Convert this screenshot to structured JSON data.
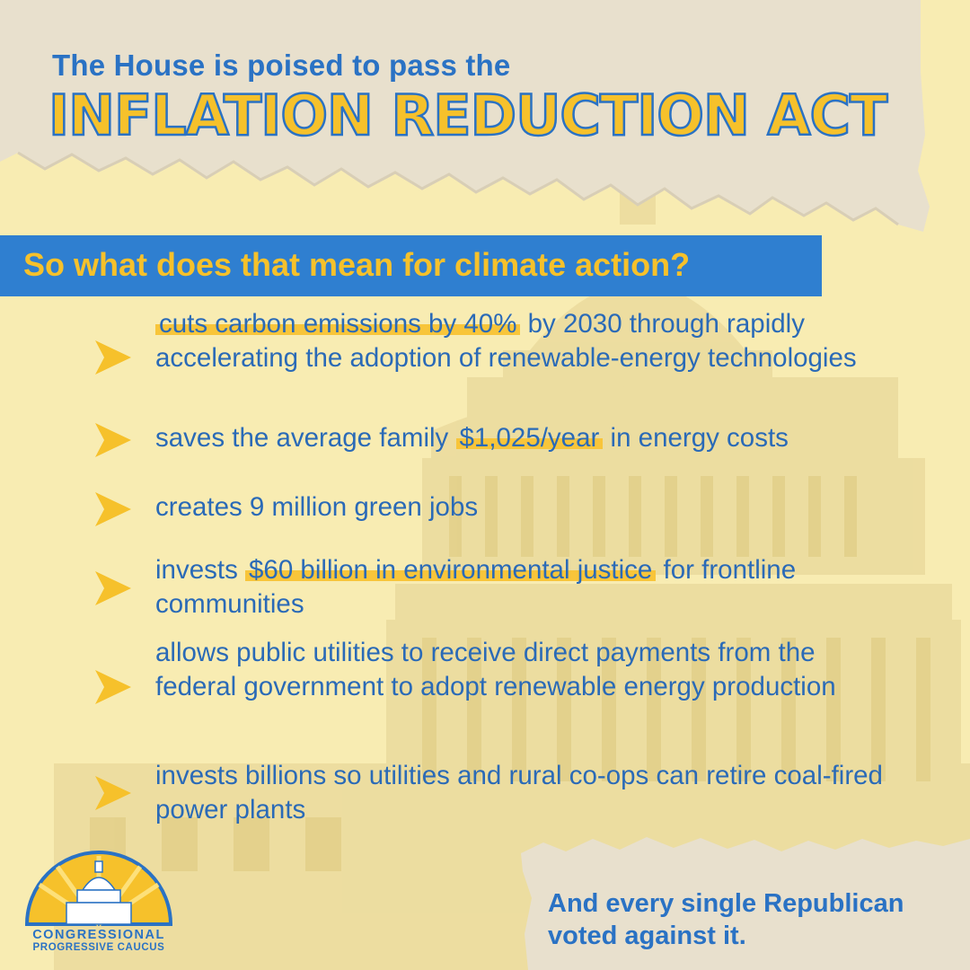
{
  "header": {
    "line1": "The House is poised to pass the",
    "line2": "INFLATION REDUCTION ACT"
  },
  "banner": {
    "text": "So what does that mean for climate action?"
  },
  "items": [
    {
      "pre": "",
      "highlight": "cuts carbon emissions by 40%",
      "post": " by 2030 through rapidly accelerating the adoption of renewable-energy technologies"
    },
    {
      "pre": "saves the average family ",
      "highlight": "$1,025/year",
      "post": " in energy costs"
    },
    {
      "pre": "creates 9 million green jobs",
      "highlight": "",
      "post": ""
    },
    {
      "pre": "invests ",
      "highlight": "$60 billion in environmental justice",
      "post": " for frontline communities"
    },
    {
      "pre": "allows public utilities to receive direct payments from the federal government to adopt renewable energy production",
      "highlight": "",
      "post": ""
    },
    {
      "pre": "invests billions so utilities and rural co-ops can retire coal-fired power plants",
      "highlight": "",
      "post": ""
    }
  ],
  "logo": {
    "line1": "CONGRESSIONAL",
    "line2": "PROGRESSIVE CAUCUS"
  },
  "closing": {
    "line1": "And every single Republican",
    "line2": "voted against it."
  },
  "colors": {
    "background": "#f8ecb2",
    "blue": "#2a72c4",
    "yellow": "#f6c12b",
    "paper": "#e8e0cd"
  }
}
